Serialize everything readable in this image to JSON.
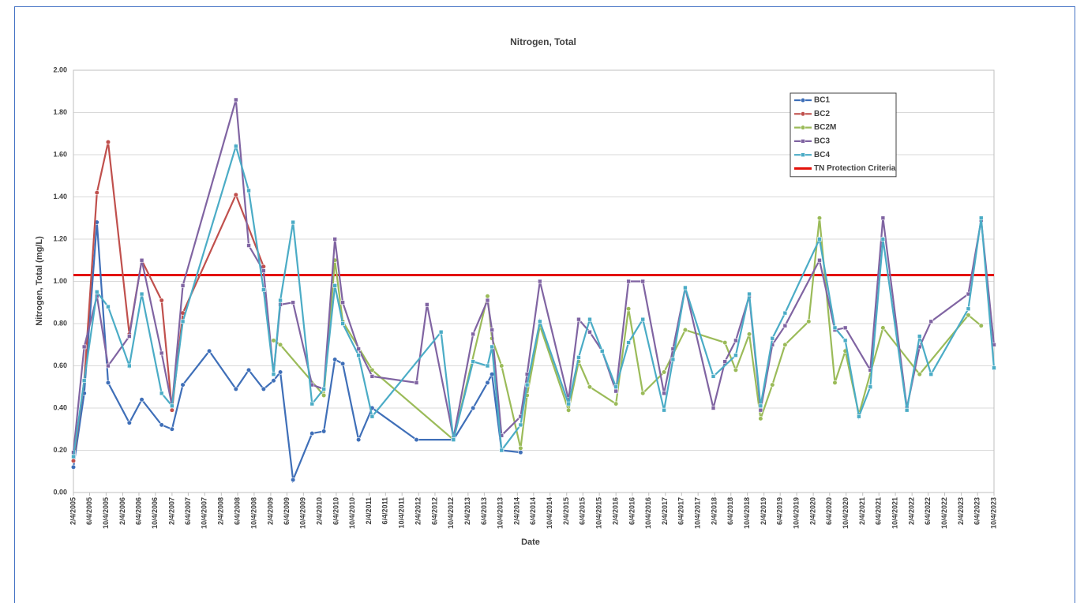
{
  "chart_data": {
    "type": "line",
    "title": "Nitrogen, Total",
    "x_label": "Date",
    "y_label": "Nitrogen, Total (mg/L)",
    "xlim": [
      "2005-02-04",
      "2023-10-04"
    ],
    "xticks": [
      {
        "value": "2005-02-04",
        "label": "2/4/2005"
      },
      {
        "value": "2005-06-04",
        "label": "6/4/2005"
      },
      {
        "value": "2005-10-04",
        "label": "10/4/2005"
      },
      {
        "value": "2006-02-04",
        "label": "2/4/2006"
      },
      {
        "value": "2006-06-04",
        "label": "6/4/2006"
      },
      {
        "value": "2006-10-04",
        "label": "10/4/2006"
      },
      {
        "value": "2007-02-04",
        "label": "2/4/2007"
      },
      {
        "value": "2007-06-04",
        "label": "6/4/2007"
      },
      {
        "value": "2007-10-04",
        "label": "10/4/2007"
      },
      {
        "value": "2008-02-04",
        "label": "2/4/2008"
      },
      {
        "value": "2008-06-04",
        "label": "6/4/2008"
      },
      {
        "value": "2008-10-04",
        "label": "10/4/2008"
      },
      {
        "value": "2009-02-04",
        "label": "2/4/2009"
      },
      {
        "value": "2009-06-04",
        "label": "6/4/2009"
      },
      {
        "value": "2009-10-04",
        "label": "10/4/2009"
      },
      {
        "value": "2010-02-04",
        "label": "2/4/2010"
      },
      {
        "value": "2010-06-04",
        "label": "6/4/2010"
      },
      {
        "value": "2010-10-04",
        "label": "10/4/2010"
      },
      {
        "value": "2011-02-04",
        "label": "2/4/2011"
      },
      {
        "value": "2011-06-04",
        "label": "6/4/2011"
      },
      {
        "value": "2011-10-04",
        "label": "10/4/2011"
      },
      {
        "value": "2012-02-04",
        "label": "2/4/2012"
      },
      {
        "value": "2012-06-04",
        "label": "6/4/2012"
      },
      {
        "value": "2012-10-04",
        "label": "10/4/2012"
      },
      {
        "value": "2013-02-04",
        "label": "2/4/2013"
      },
      {
        "value": "2013-06-04",
        "label": "6/4/2013"
      },
      {
        "value": "2013-10-04",
        "label": "10/4/2013"
      },
      {
        "value": "2014-02-04",
        "label": "2/4/2014"
      },
      {
        "value": "2014-06-04",
        "label": "6/4/2014"
      },
      {
        "value": "2014-10-04",
        "label": "10/4/2014"
      },
      {
        "value": "2015-02-04",
        "label": "2/4/2015"
      },
      {
        "value": "2015-06-04",
        "label": "6/4/2015"
      },
      {
        "value": "2015-10-04",
        "label": "10/4/2015"
      },
      {
        "value": "2016-02-04",
        "label": "2/4/2016"
      },
      {
        "value": "2016-06-04",
        "label": "6/4/2016"
      },
      {
        "value": "2016-10-04",
        "label": "10/4/2016"
      },
      {
        "value": "2017-02-04",
        "label": "2/4/2017"
      },
      {
        "value": "2017-06-04",
        "label": "6/4/2017"
      },
      {
        "value": "2017-10-04",
        "label": "10/4/2017"
      },
      {
        "value": "2018-02-04",
        "label": "2/4/2018"
      },
      {
        "value": "2018-06-04",
        "label": "6/4/2018"
      },
      {
        "value": "2018-10-04",
        "label": "10/4/2018"
      },
      {
        "value": "2019-02-04",
        "label": "2/4/2019"
      },
      {
        "value": "2019-06-04",
        "label": "6/4/2019"
      },
      {
        "value": "2019-10-04",
        "label": "10/4/2019"
      },
      {
        "value": "2020-02-04",
        "label": "2/4/2020"
      },
      {
        "value": "2020-06-04",
        "label": "6/4/2020"
      },
      {
        "value": "2020-10-04",
        "label": "10/4/2020"
      },
      {
        "value": "2021-02-04",
        "label": "2/4/2021"
      },
      {
        "value": "2021-06-04",
        "label": "6/4/2021"
      },
      {
        "value": "2021-10-04",
        "label": "10/4/2021"
      },
      {
        "value": "2022-02-04",
        "label": "2/4/2022"
      },
      {
        "value": "2022-06-04",
        "label": "6/4/2022"
      },
      {
        "value": "2022-10-04",
        "label": "10/4/2022"
      },
      {
        "value": "2023-02-04",
        "label": "2/4/2023"
      },
      {
        "value": "2023-06-04",
        "label": "6/4/2023"
      },
      {
        "value": "2023-10-04",
        "label": "10/4/2023"
      }
    ],
    "ylim": [
      0,
      2
    ],
    "yticks": [
      {
        "value": 0,
        "label": "0.00"
      },
      {
        "value": 0.2,
        "label": "0.20"
      },
      {
        "value": 0.4,
        "label": "0.40"
      },
      {
        "value": 0.6,
        "label": "0.60"
      },
      {
        "value": 0.8,
        "label": "0.80"
      },
      {
        "value": 1,
        "label": "1.00"
      },
      {
        "value": 1.2,
        "label": "1.20"
      },
      {
        "value": 1.4,
        "label": "1.40"
      },
      {
        "value": 1.6,
        "label": "1.60"
      },
      {
        "value": 1.8,
        "label": "1.80"
      },
      {
        "value": 2,
        "label": "2.00"
      }
    ],
    "grid": true,
    "legend": "upper right",
    "series": [
      {
        "name": "BC1",
        "color": "#3f6fb8",
        "marker": "circle",
        "x": [
          "2005-02-04",
          "2005-04-25",
          "2005-07-28",
          "2005-10-19",
          "2006-03-25",
          "2006-06-25",
          "2006-11-19",
          "2007-02-04",
          "2007-04-25",
          "2007-11-07",
          "2008-05-22",
          "2008-08-25",
          "2008-12-13",
          "2009-02-25",
          "2009-04-16",
          "2009-07-19",
          "2009-12-07",
          "2010-03-04",
          "2010-05-25",
          "2010-07-22",
          "2010-11-16",
          "2011-02-25",
          "2012-01-19",
          "2012-10-19",
          "2013-03-13",
          "2013-06-28",
          "2013-07-31",
          "2013-10-10",
          "2014-02-28"
        ],
        "values": [
          0.12,
          0.47,
          1.28,
          0.52,
          0.33,
          0.44,
          0.32,
          0.3,
          0.51,
          0.67,
          0.49,
          0.58,
          0.49,
          0.53,
          0.57,
          0.06,
          0.28,
          0.29,
          0.63,
          0.61,
          0.25,
          0.4,
          0.25,
          0.25,
          0.4,
          0.52,
          0.56,
          0.2,
          0.19
        ]
      },
      {
        "name": "BC2",
        "color": "#c0504d",
        "marker": "circle",
        "x": [
          "2005-02-04",
          "2005-04-25",
          "2005-07-28",
          "2005-10-19",
          "2006-03-25",
          "2006-06-25",
          "2006-11-19",
          "2007-02-04",
          "2007-04-25",
          "2008-05-22",
          "2008-12-13"
        ],
        "values": [
          0.15,
          0.53,
          1.42,
          1.66,
          0.75,
          1.1,
          0.91,
          0.39,
          0.85,
          1.41,
          1.07
        ]
      },
      {
        "name": "BC2M",
        "color": "#9bbb59",
        "marker": "circle",
        "x": [
          "2009-02-25",
          "2009-04-16",
          "2010-03-04",
          "2010-05-25",
          "2010-07-22",
          "2011-02-25",
          "2012-10-19",
          "2013-06-28",
          "2013-07-31",
          "2013-10-10",
          "2014-02-28",
          "2014-04-17",
          "2014-07-21",
          "2015-02-18",
          "2015-05-04",
          "2015-07-25",
          "2016-02-04",
          "2016-05-07",
          "2016-08-21",
          "2017-01-25",
          "2017-07-01",
          "2018-04-21",
          "2018-07-10",
          "2018-10-18",
          "2019-01-10",
          "2019-04-07",
          "2019-07-10",
          "2020-01-01",
          "2020-03-21",
          "2020-07-13",
          "2020-09-28",
          "2021-01-07",
          "2021-07-04",
          "2022-04-01",
          "2023-03-28",
          "2023-07-01"
        ],
        "values": [
          0.72,
          0.7,
          0.46,
          1.1,
          0.81,
          0.58,
          0.25,
          0.93,
          0.73,
          0.6,
          0.21,
          0.46,
          0.79,
          0.39,
          0.62,
          0.5,
          0.42,
          0.87,
          0.47,
          0.57,
          0.77,
          0.71,
          0.58,
          0.75,
          0.35,
          0.51,
          0.7,
          0.81,
          1.3,
          0.52,
          0.67,
          0.37,
          0.78,
          0.56,
          0.84,
          0.79
        ]
      },
      {
        "name": "BC3",
        "color": "#8064a2",
        "marker": "square",
        "x": [
          "2005-02-04",
          "2005-04-25",
          "2005-07-28",
          "2005-10-19",
          "2006-03-25",
          "2006-06-25",
          "2006-11-19",
          "2007-02-04",
          "2007-04-25",
          "2008-05-22",
          "2008-08-25",
          "2008-12-13",
          "2009-02-25",
          "2009-04-16",
          "2009-07-19",
          "2009-12-07",
          "2010-03-04",
          "2010-05-25",
          "2010-07-22",
          "2010-11-16",
          "2011-02-25",
          "2012-01-19",
          "2012-04-06",
          "2012-10-19",
          "2013-03-13",
          "2013-06-28",
          "2013-07-31",
          "2013-10-10",
          "2014-02-28",
          "2014-04-17",
          "2014-07-21",
          "2015-02-18",
          "2015-05-04",
          "2015-07-25",
          "2015-10-25",
          "2016-02-04",
          "2016-05-07",
          "2016-08-21",
          "2017-01-25",
          "2017-04-01",
          "2017-07-01",
          "2018-01-25",
          "2018-04-21",
          "2018-07-10",
          "2018-10-18",
          "2019-01-10",
          "2019-04-07",
          "2019-07-10",
          "2020-03-21",
          "2020-07-13",
          "2020-09-28",
          "2021-04-01",
          "2021-07-04",
          "2021-12-28",
          "2022-04-01",
          "2022-06-25",
          "2023-03-28",
          "2023-07-01",
          "2023-10-04"
        ],
        "values": [
          0.19,
          0.69,
          0.93,
          0.6,
          0.74,
          1.1,
          0.66,
          0.41,
          0.98,
          1.86,
          1.17,
          1.05,
          0.56,
          0.89,
          0.9,
          0.51,
          0.49,
          1.2,
          0.9,
          0.68,
          0.55,
          0.52,
          0.89,
          0.26,
          0.75,
          0.91,
          0.77,
          0.27,
          0.36,
          0.56,
          1.0,
          0.44,
          0.82,
          0.76,
          0.67,
          0.48,
          1.0,
          1.0,
          0.47,
          0.68,
          0.97,
          0.4,
          0.62,
          0.72,
          0.93,
          0.39,
          0.7,
          0.79,
          1.1,
          0.77,
          0.78,
          0.58,
          1.3,
          0.4,
          0.69,
          0.81,
          0.94,
          1.29,
          0.7
        ]
      },
      {
        "name": "BC4",
        "color": "#4bacc6",
        "marker": "square",
        "x": [
          "2005-02-04",
          "2005-04-25",
          "2005-07-28",
          "2005-10-19",
          "2006-03-25",
          "2006-06-25",
          "2006-11-19",
          "2007-02-04",
          "2007-04-25",
          "2008-05-22",
          "2008-08-25",
          "2008-12-13",
          "2009-02-25",
          "2009-04-16",
          "2009-07-19",
          "2009-12-07",
          "2010-03-04",
          "2010-05-25",
          "2010-07-22",
          "2010-11-16",
          "2011-02-25",
          "2012-07-19",
          "2012-10-19",
          "2013-03-13",
          "2013-06-28",
          "2013-07-31",
          "2013-10-10",
          "2014-02-28",
          "2014-04-17",
          "2014-07-21",
          "2015-02-18",
          "2015-05-04",
          "2015-07-25",
          "2015-10-25",
          "2016-02-04",
          "2016-05-07",
          "2016-08-21",
          "2017-01-25",
          "2017-04-01",
          "2017-07-01",
          "2018-01-25",
          "2018-07-10",
          "2018-10-18",
          "2019-01-10",
          "2019-04-07",
          "2019-07-10",
          "2020-03-21",
          "2020-07-13",
          "2020-09-28",
          "2021-01-07",
          "2021-04-01",
          "2021-07-04",
          "2021-12-28",
          "2022-04-01",
          "2022-06-25",
          "2023-03-28",
          "2023-07-01",
          "2023-10-04"
        ],
        "values": [
          0.17,
          0.53,
          0.95,
          0.88,
          0.6,
          0.94,
          0.47,
          0.41,
          0.81,
          1.64,
          1.43,
          0.96,
          0.56,
          0.91,
          1.28,
          0.42,
          0.49,
          0.98,
          0.8,
          0.65,
          0.36,
          0.76,
          0.25,
          0.62,
          0.6,
          0.69,
          0.2,
          0.32,
          0.51,
          0.81,
          0.42,
          0.64,
          0.82,
          0.67,
          0.5,
          0.71,
          0.82,
          0.39,
          0.63,
          0.97,
          0.55,
          0.65,
          0.94,
          0.41,
          0.73,
          0.85,
          1.2,
          0.78,
          0.72,
          0.36,
          0.5,
          1.2,
          0.39,
          0.74,
          0.56,
          0.87,
          1.3,
          0.59
        ]
      }
    ],
    "threshold": {
      "name": "TN Protection Criteria",
      "value": 1.03,
      "color": "#e3120b"
    }
  }
}
